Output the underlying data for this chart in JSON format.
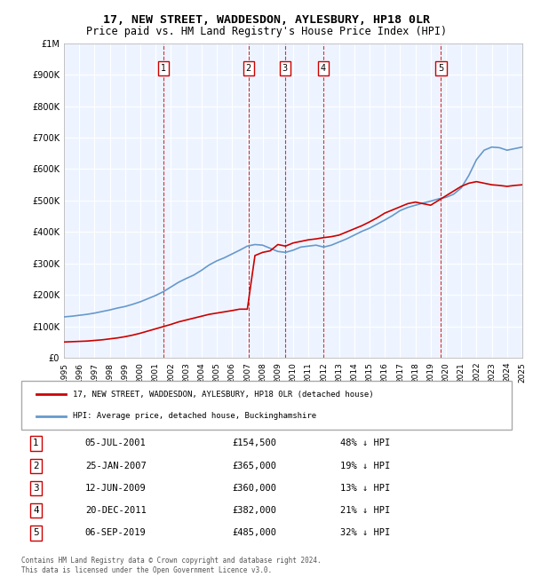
{
  "title": "17, NEW STREET, WADDESDON, AYLESBURY, HP18 0LR",
  "subtitle": "Price paid vs. HM Land Registry's House Price Index (HPI)",
  "legend_line1": "17, NEW STREET, WADDESDON, AYLESBURY, HP18 0LR (detached house)",
  "legend_line2": "HPI: Average price, detached house, Buckinghamshire",
  "footnote": "Contains HM Land Registry data © Crown copyright and database right 2024.\nThis data is licensed under the Open Government Licence v3.0.",
  "transactions": [
    {
      "num": 1,
      "date": "05-JUL-2001",
      "price": "£154,500",
      "hpi": "48% ↓ HPI",
      "year": 2001.5
    },
    {
      "num": 2,
      "date": "25-JAN-2007",
      "price": "£365,000",
      "hpi": "19% ↓ HPI",
      "year": 2007.07
    },
    {
      "num": 3,
      "date": "12-JUN-2009",
      "price": "£360,000",
      "hpi": "13% ↓ HPI",
      "year": 2009.45
    },
    {
      "num": 4,
      "date": "20-DEC-2011",
      "price": "£382,000",
      "hpi": "21% ↓ HPI",
      "year": 2011.97
    },
    {
      "num": 5,
      "date": "06-SEP-2019",
      "price": "£485,000",
      "hpi": "32% ↓ HPI",
      "year": 2019.68
    }
  ],
  "transaction_prices": [
    154500,
    365000,
    360000,
    382000,
    485000
  ],
  "hpi_years": [
    1995,
    1995.5,
    1996,
    1996.5,
    1997,
    1997.5,
    1998,
    1998.5,
    1999,
    1999.5,
    2000,
    2000.5,
    2001,
    2001.5,
    2002,
    2002.5,
    2003,
    2003.5,
    2004,
    2004.5,
    2005,
    2005.5,
    2006,
    2006.5,
    2007,
    2007.5,
    2008,
    2008.5,
    2009,
    2009.5,
    2010,
    2010.5,
    2011,
    2011.5,
    2012,
    2012.5,
    2013,
    2013.5,
    2014,
    2014.5,
    2015,
    2015.5,
    2016,
    2016.5,
    2017,
    2017.5,
    2018,
    2018.5,
    2019,
    2019.5,
    2020,
    2020.5,
    2021,
    2021.5,
    2022,
    2022.5,
    2023,
    2023.5,
    2024,
    2024.5,
    2025
  ],
  "hpi_values": [
    130000,
    132000,
    135000,
    138000,
    142000,
    147000,
    152000,
    158000,
    163000,
    170000,
    178000,
    188000,
    198000,
    210000,
    225000,
    240000,
    252000,
    263000,
    278000,
    295000,
    308000,
    318000,
    330000,
    342000,
    355000,
    360000,
    358000,
    348000,
    338000,
    335000,
    342000,
    352000,
    355000,
    358000,
    352000,
    358000,
    368000,
    378000,
    390000,
    402000,
    412000,
    425000,
    438000,
    452000,
    468000,
    478000,
    485000,
    492000,
    498000,
    505000,
    510000,
    520000,
    540000,
    580000,
    630000,
    660000,
    670000,
    668000,
    660000,
    665000,
    670000
  ],
  "price_years": [
    1995,
    1995.5,
    1996,
    1996.5,
    1997,
    1997.5,
    1998,
    1998.5,
    1999,
    1999.5,
    2000,
    2000.5,
    2001,
    2001.5,
    2002,
    2002.5,
    2003,
    2003.5,
    2004,
    2004.5,
    2005,
    2005.5,
    2006,
    2006.5,
    2007,
    2007.5,
    2008,
    2008.5,
    2009,
    2009.5,
    2010,
    2010.5,
    2011,
    2011.5,
    2012,
    2012.5,
    2013,
    2013.5,
    2014,
    2014.5,
    2015,
    2015.5,
    2016,
    2016.5,
    2017,
    2017.5,
    2018,
    2018.5,
    2019,
    2019.5,
    2020,
    2020.5,
    2021,
    2021.5,
    2022,
    2022.5,
    2023,
    2023.5,
    2024,
    2024.5,
    2025
  ],
  "price_values": [
    50000,
    51000,
    52000,
    53000,
    55000,
    57000,
    60000,
    63000,
    67000,
    72000,
    78000,
    85000,
    92000,
    99000,
    106000,
    114000,
    120000,
    126000,
    132000,
    138000,
    142000,
    146000,
    150000,
    154500,
    154500,
    325000,
    335000,
    340000,
    360000,
    355000,
    365000,
    370000,
    375000,
    378000,
    382000,
    385000,
    390000,
    400000,
    410000,
    420000,
    432000,
    445000,
    460000,
    470000,
    480000,
    490000,
    495000,
    490000,
    485000,
    500000,
    515000,
    530000,
    545000,
    555000,
    560000,
    555000,
    550000,
    548000,
    545000,
    548000,
    550000
  ],
  "ylim": [
    0,
    1000000
  ],
  "xlim": [
    1995,
    2025
  ],
  "yticks": [
    0,
    100000,
    200000,
    300000,
    400000,
    500000,
    600000,
    700000,
    800000,
    900000,
    1000000
  ],
  "ytick_labels": [
    "£0",
    "£100K",
    "£200K",
    "£300K",
    "£400K",
    "£500K",
    "£600K",
    "£700K",
    "£800K",
    "£900K",
    "£1M"
  ],
  "xticks": [
    1995,
    1996,
    1997,
    1998,
    1999,
    2000,
    2001,
    2002,
    2003,
    2004,
    2005,
    2006,
    2007,
    2008,
    2009,
    2010,
    2011,
    2012,
    2013,
    2014,
    2015,
    2016,
    2017,
    2018,
    2019,
    2020,
    2021,
    2022,
    2023,
    2024,
    2025
  ],
  "bg_color": "#ddeeff",
  "plot_bg_color": "#eef4ff",
  "red_color": "#cc0000",
  "blue_color": "#6699cc"
}
